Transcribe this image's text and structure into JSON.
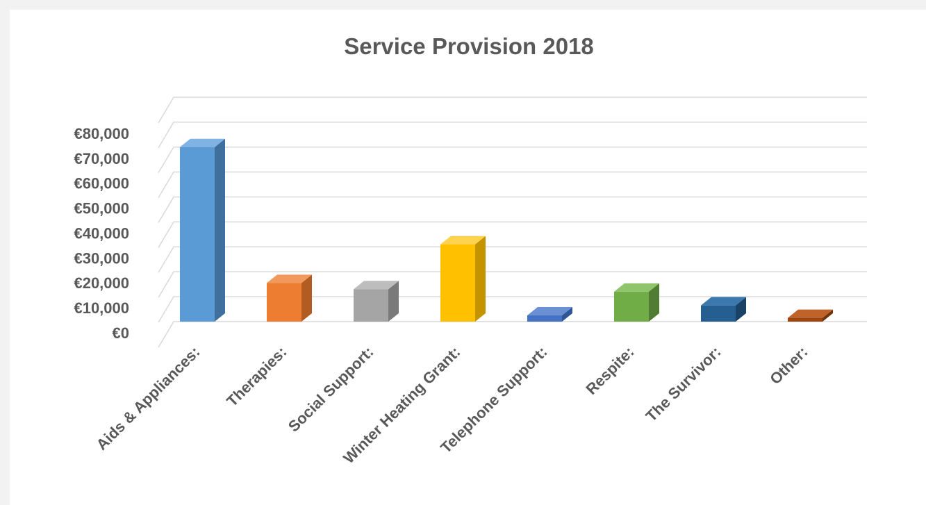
{
  "chart_data": {
    "type": "bar",
    "title": "Service Provision 2018",
    "xlabel": "",
    "ylabel": "",
    "categories": [
      "Aids & Appliances:",
      "Therapies:",
      "Social Support:",
      "Winter Heating Grant:",
      "Telephone Support:",
      "Respite:",
      "The Survivor:",
      "Other:"
    ],
    "values": [
      70000,
      15500,
      13000,
      31000,
      2500,
      12000,
      6500,
      1500
    ],
    "ylim": [
      0,
      80000
    ],
    "yticks": [
      "€0",
      "€10,000",
      "€20,000",
      "€30,000",
      "€40,000",
      "€50,000",
      "€60,000",
      "€70,000",
      "€80,000"
    ],
    "grid": true,
    "legend": "none",
    "colors": [
      {
        "front": "#5b9bd5",
        "side": "#3f6f9c",
        "top": "#7fb3e3"
      },
      {
        "front": "#ed7d31",
        "side": "#b25c22",
        "top": "#f29a5e"
      },
      {
        "front": "#a5a5a5",
        "side": "#7a7a7a",
        "top": "#bdbdbd"
      },
      {
        "front": "#ffc000",
        "side": "#c49300",
        "top": "#ffd24d"
      },
      {
        "front": "#4472c4",
        "side": "#2f5597",
        "top": "#6a8fd3"
      },
      {
        "front": "#70ad47",
        "side": "#507d33",
        "top": "#8fc56a"
      },
      {
        "front": "#255e91",
        "side": "#1a4267",
        "top": "#3b78ad"
      },
      {
        "front": "#9e480e",
        "side": "#72330a",
        "top": "#c0632a"
      }
    ]
  }
}
